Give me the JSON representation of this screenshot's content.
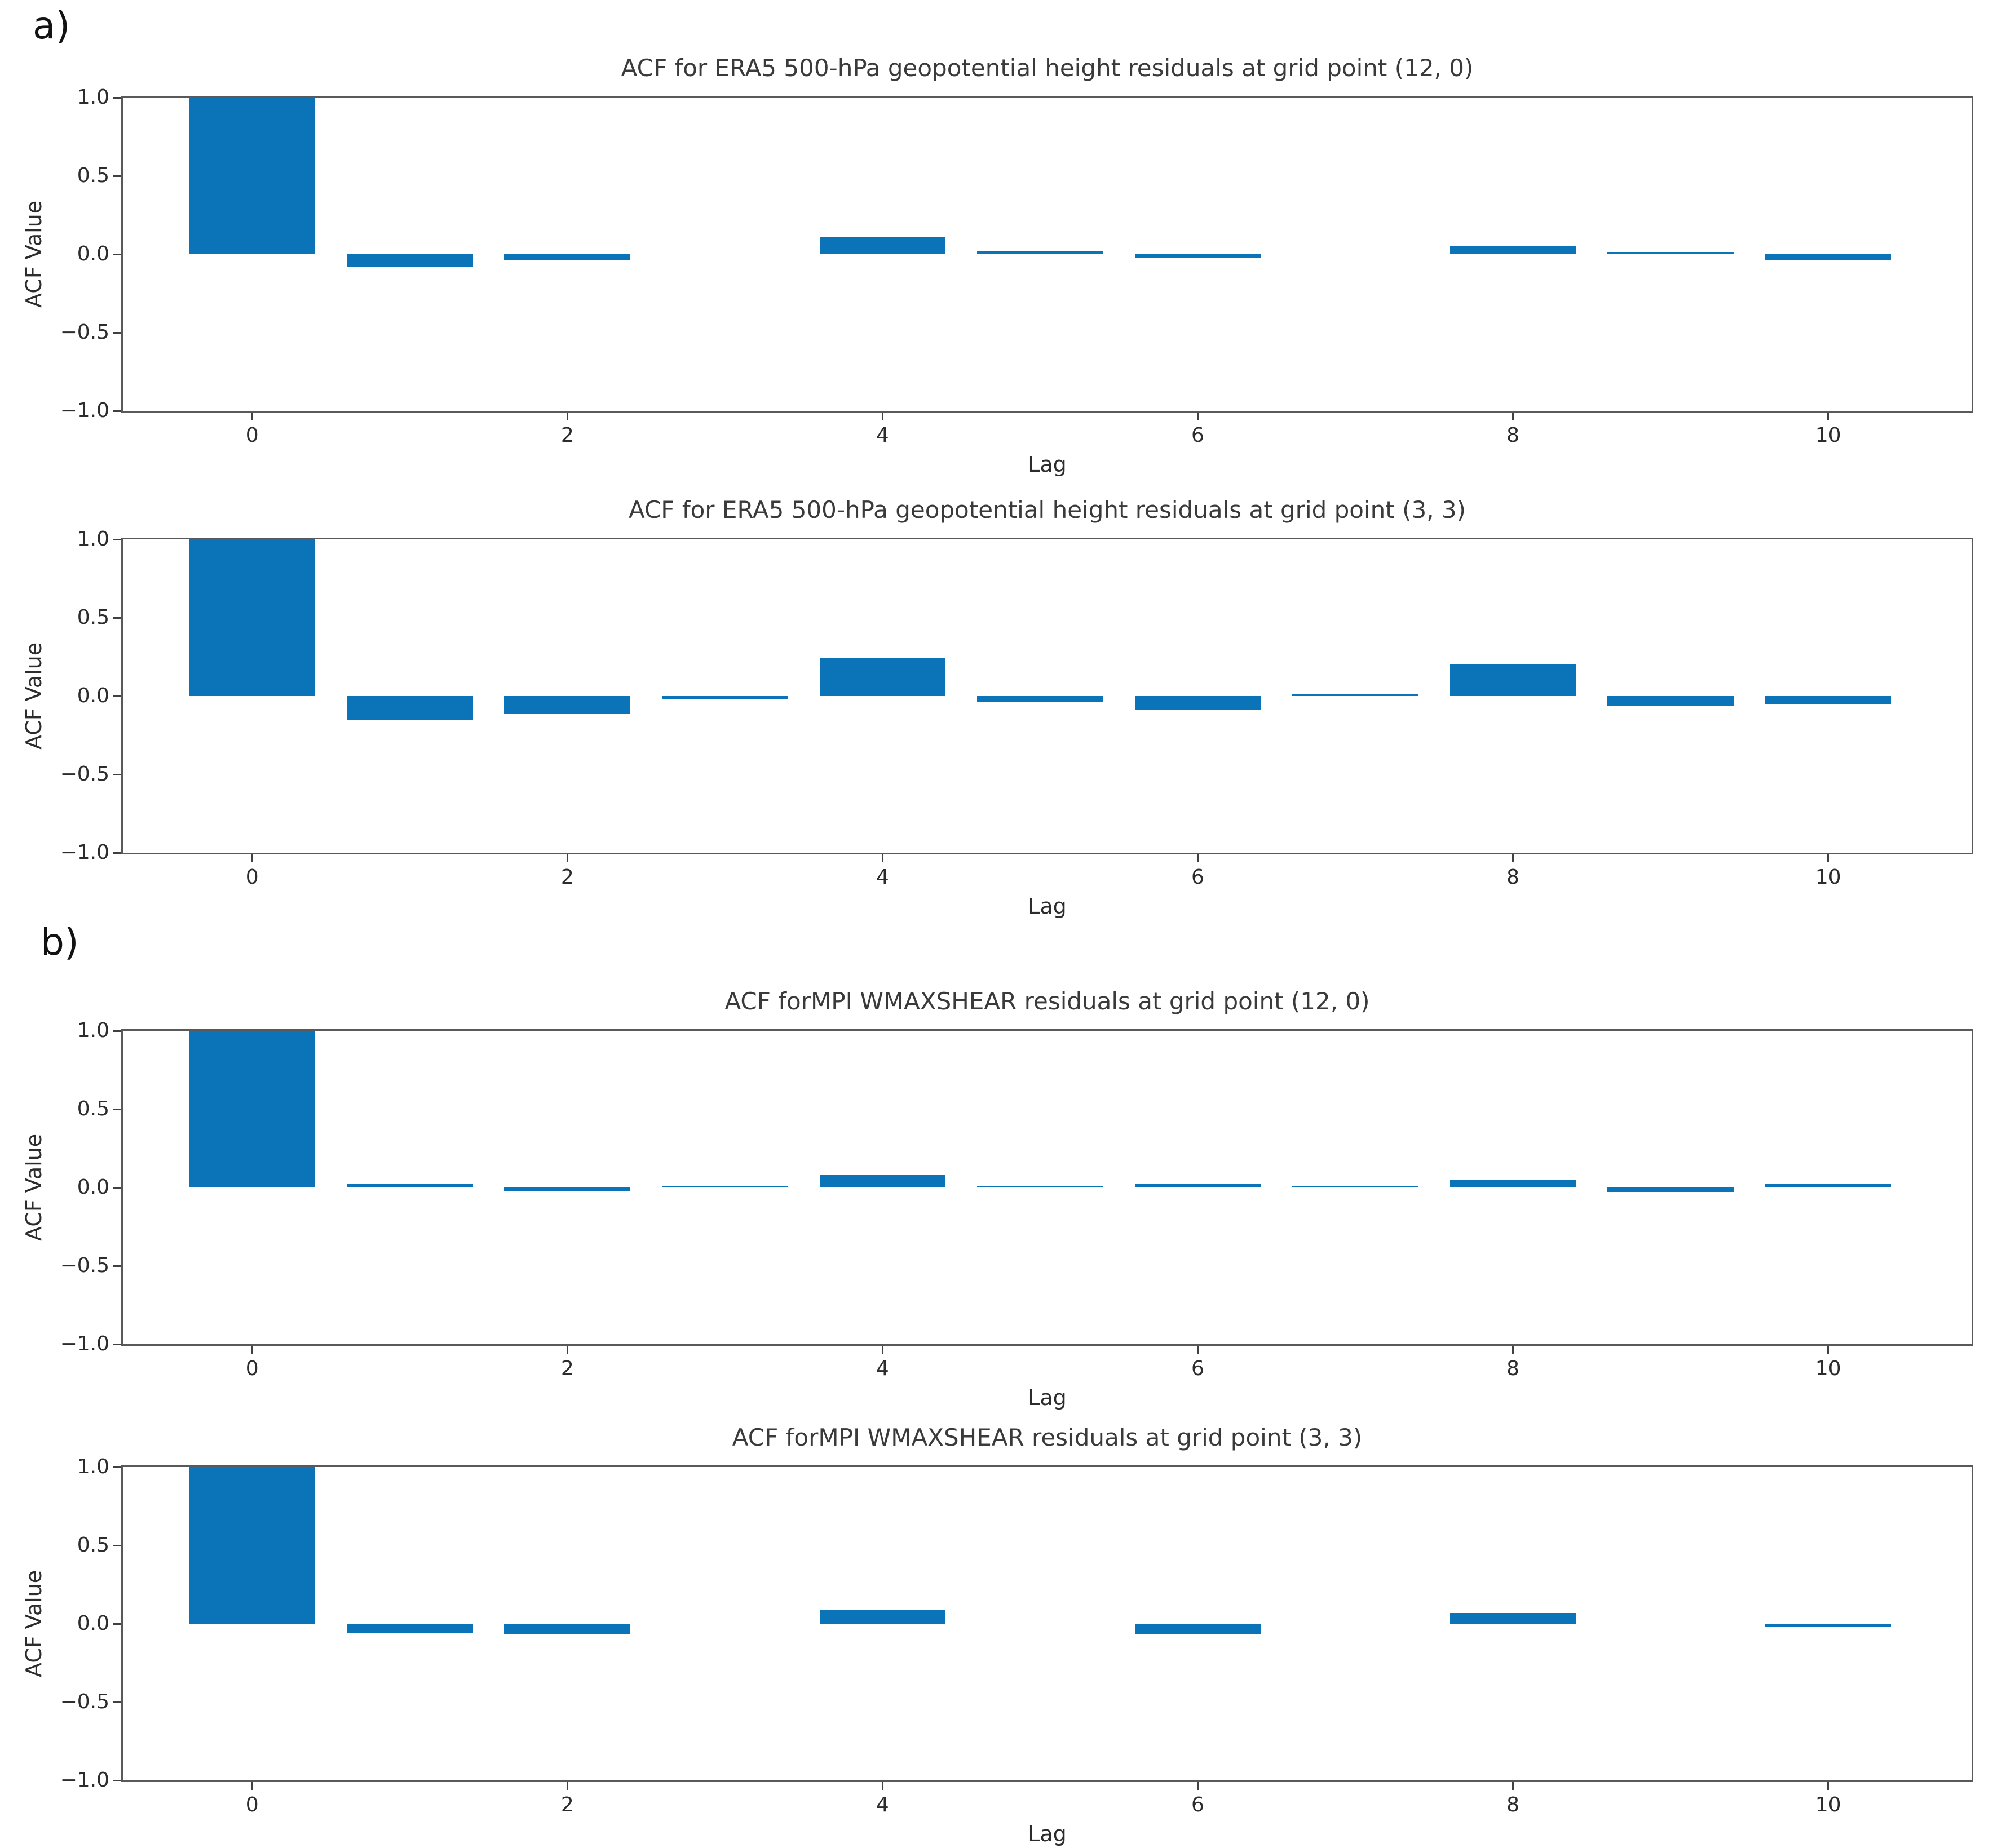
{
  "page": {
    "panel_a_label": "a)",
    "panel_b_label": "b)",
    "background": "#ffffff"
  },
  "chart_data": [
    {
      "panel": "a",
      "type": "bar",
      "title": "ACF for ERA5 500-hPa geopotential height residuals at grid point (12, 0)",
      "xlabel": "Lag",
      "ylabel": "ACF Value",
      "x": [
        0,
        1,
        2,
        3,
        4,
        5,
        6,
        7,
        8,
        9,
        10
      ],
      "values": [
        1.0,
        -0.08,
        -0.04,
        0.0,
        0.11,
        0.02,
        -0.02,
        0.0,
        0.05,
        0.01,
        -0.04
      ],
      "xticks": [
        0,
        2,
        4,
        6,
        8,
        10
      ],
      "xtick_labels": [
        "0",
        "2",
        "4",
        "6",
        "8",
        "10"
      ],
      "yticks": [
        1.0,
        0.5,
        0.0,
        -0.5,
        -1.0
      ],
      "ytick_labels": [
        "1.0",
        "0.5",
        "0.0",
        "−0.5",
        "−1.0"
      ],
      "ylim": [
        -1,
        1
      ],
      "xlim": [
        -0.82,
        10.91
      ],
      "bar_color": "#0b74b8",
      "grid": false
    },
    {
      "panel": "a",
      "type": "bar",
      "title": "ACF for ERA5 500-hPa geopotential height residuals at grid point (3, 3)",
      "xlabel": "Lag",
      "ylabel": "ACF Value",
      "x": [
        0,
        1,
        2,
        3,
        4,
        5,
        6,
        7,
        8,
        9,
        10
      ],
      "values": [
        1.0,
        -0.15,
        -0.11,
        -0.02,
        0.24,
        -0.04,
        -0.09,
        0.01,
        0.2,
        -0.06,
        -0.05
      ],
      "xticks": [
        0,
        2,
        4,
        6,
        8,
        10
      ],
      "xtick_labels": [
        "0",
        "2",
        "4",
        "6",
        "8",
        "10"
      ],
      "yticks": [
        1.0,
        0.5,
        0.0,
        -0.5,
        -1.0
      ],
      "ytick_labels": [
        "1.0",
        "0.5",
        "0.0",
        "−0.5",
        "−1.0"
      ],
      "ylim": [
        -1,
        1
      ],
      "xlim": [
        -0.82,
        10.91
      ],
      "bar_color": "#0b74b8",
      "grid": false
    },
    {
      "panel": "b",
      "type": "bar",
      "title": "ACF forMPI WMAXSHEAR residuals at grid point (12, 0)",
      "xlabel": "Lag",
      "ylabel": "ACF Value",
      "x": [
        0,
        1,
        2,
        3,
        4,
        5,
        6,
        7,
        8,
        9,
        10
      ],
      "values": [
        1.0,
        0.02,
        -0.02,
        0.01,
        0.08,
        0.01,
        0.02,
        0.01,
        0.05,
        -0.03,
        0.02
      ],
      "xticks": [
        0,
        2,
        4,
        6,
        8,
        10
      ],
      "xtick_labels": [
        "0",
        "2",
        "4",
        "6",
        "8",
        "10"
      ],
      "yticks": [
        1.0,
        0.5,
        0.0,
        -0.5,
        -1.0
      ],
      "ytick_labels": [
        "1.0",
        "0.5",
        "0.0",
        "−0.5",
        "−1.0"
      ],
      "ylim": [
        -1,
        1
      ],
      "xlim": [
        -0.82,
        10.91
      ],
      "bar_color": "#0b74b8",
      "grid": false
    },
    {
      "panel": "b",
      "type": "bar",
      "title": "ACF forMPI WMAXSHEAR residuals at grid point (3, 3)",
      "xlabel": "Lag",
      "ylabel": "ACF Value",
      "x": [
        0,
        1,
        2,
        3,
        4,
        5,
        6,
        7,
        8,
        9,
        10
      ],
      "values": [
        1.0,
        -0.06,
        -0.07,
        0.0,
        0.09,
        0.0,
        -0.07,
        0.0,
        0.07,
        0.0,
        -0.02
      ],
      "xticks": [
        0,
        2,
        4,
        6,
        8,
        10
      ],
      "xtick_labels": [
        "0",
        "2",
        "4",
        "6",
        "8",
        "10"
      ],
      "yticks": [
        1.0,
        0.5,
        0.0,
        -0.5,
        -1.0
      ],
      "ytick_labels": [
        "1.0",
        "0.5",
        "0.0",
        "−0.5",
        "−1.0"
      ],
      "ylim": [
        -1,
        1
      ],
      "xlim": [
        -0.82,
        10.91
      ],
      "bar_color": "#0b74b8",
      "grid": false
    }
  ]
}
